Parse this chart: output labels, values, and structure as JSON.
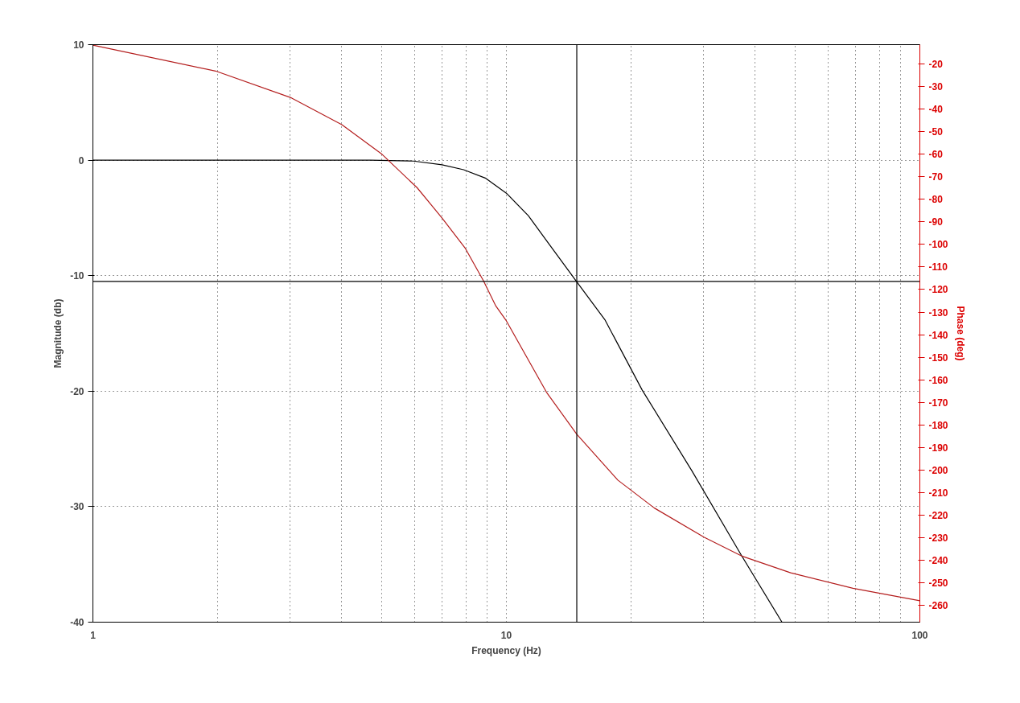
{
  "chart_data": {
    "type": "line",
    "xlabel": "Frequency (Hz)",
    "ylabel": "Magnitude (db)",
    "y2label": "Phase (deg)",
    "log": "x",
    "xlim": [
      1,
      100
    ],
    "xticks": [
      1,
      {
        "value": 2,
        "label": null
      },
      {
        "value": 3,
        "label": null
      },
      {
        "value": 4,
        "label": null
      },
      {
        "value": 5,
        "label": null
      },
      {
        "value": 6,
        "label": null
      },
      {
        "value": 7,
        "label": null
      },
      {
        "value": 8,
        "label": null
      },
      {
        "value": 9,
        "label": null
      },
      10,
      {
        "value": 20,
        "label": null
      },
      {
        "value": 30,
        "label": null
      },
      {
        "value": 40,
        "label": null
      },
      {
        "value": 50,
        "label": null
      },
      {
        "value": 60,
        "label": null
      },
      {
        "value": 70,
        "label": null
      },
      {
        "value": 80,
        "label": null
      },
      {
        "value": 90,
        "label": null
      },
      100
    ],
    "ylim": [
      -40,
      10
    ],
    "yticks": [
      10,
      0,
      -10,
      -20,
      -30,
      -40
    ],
    "y2lim": [
      -267.5,
      -11.4
    ],
    "y2ticks": [
      -20,
      -30,
      -40,
      -50,
      -60,
      -70,
      -80,
      -90,
      -100,
      -110,
      -120,
      -130,
      -140,
      -150,
      -160,
      -170,
      -180,
      -190,
      -200,
      -210,
      -220,
      -230,
      -240,
      -250,
      -260
    ],
    "grid": true,
    "line_style": "solid",
    "marker": "none",
    "series": [
      {
        "color": "#000000",
        "x": [
          1,
          4.69,
          5.96,
          6.99,
          7.88,
          8.89,
          10.0,
          11.3,
          12.7,
          14.7,
          17.3,
          21.3,
          28.1,
          37.0,
          46.4
        ],
        "values": [
          0,
          0,
          -0.08,
          -0.4,
          -0.83,
          -1.55,
          -2.86,
          -4.81,
          -7.3,
          -10.4,
          -13.8,
          -19.9,
          -26.9,
          -34.2,
          -40
        ]
      },
      {
        "color": "#b41e1e",
        "axis": "y2",
        "x": [
          1.0,
          1.98,
          3.02,
          4.0,
          4.98,
          6.08,
          6.99,
          7.96,
          8.8,
          9.43,
          10.0,
          12.5,
          14.8,
          18.6,
          22.8,
          30.1,
          37.0,
          48.7,
          68.9,
          100
        ],
        "values": [
          -11.6,
          -23.1,
          -35.0,
          -46.9,
          -59.7,
          -74.8,
          -88.3,
          -101.8,
          -116.1,
          -127.3,
          -133.9,
          -165.5,
          -184.2,
          -204.5,
          -216.9,
          -229.9,
          -238.1,
          -245.6,
          -252.5,
          -258.0
        ]
      }
    ],
    "ref_lines": [
      {
        "axis": "x",
        "value": 14.8,
        "color": "#000000",
        "line_style": "solid"
      },
      {
        "axis": "y",
        "value": -10.5,
        "color": "#000000",
        "line_style": "solid"
      }
    ]
  }
}
